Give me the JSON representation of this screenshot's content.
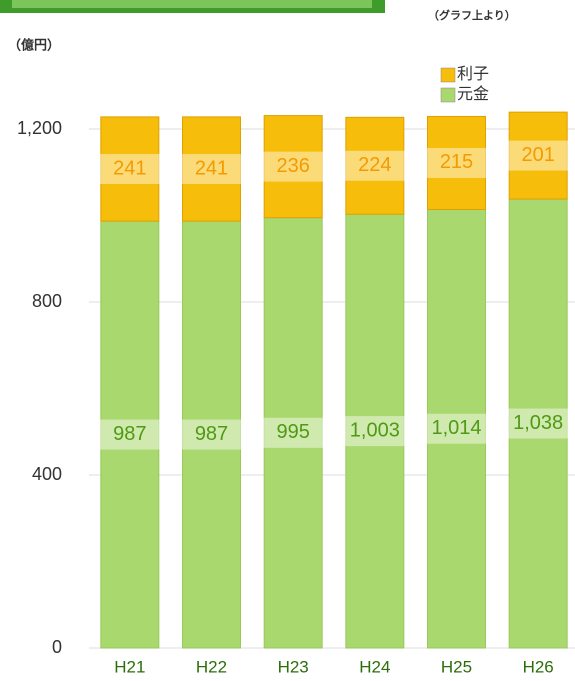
{
  "chart_data": {
    "type": "stacked_bar",
    "unit_label": "（億円）",
    "note": "（グラフ上より）",
    "categories": [
      "H21",
      "H22",
      "H23",
      "H24",
      "H25",
      "H26"
    ],
    "series": [
      {
        "name": "元金",
        "color": "#a9d86e",
        "label_color": "#4f9a14",
        "values": [
          987,
          987,
          995,
          1003,
          1014,
          1038
        ],
        "value_labels": [
          "987",
          "987",
          "995",
          "1,003",
          "1,014",
          "1,038"
        ]
      },
      {
        "name": "利子",
        "color": "#f6bd0a",
        "label_color": "#f59a00",
        "values": [
          241,
          241,
          236,
          224,
          215,
          201
        ]
      }
    ],
    "ylim": [
      0,
      1300
    ],
    "yticks": [
      0,
      400,
      800,
      {
        "value": 1200,
        "label": "1,200"
      }
    ],
    "grid": true
  }
}
